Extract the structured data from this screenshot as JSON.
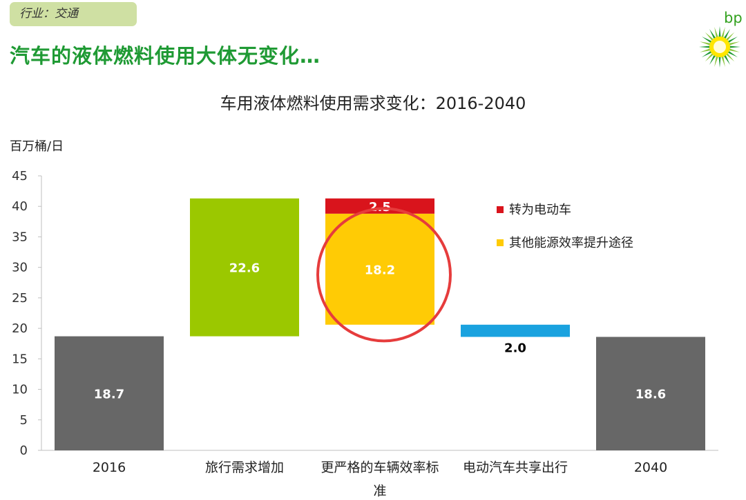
{
  "header": {
    "tag": "行业：交通",
    "headline": "汽车的液体燃料使用大体无变化…",
    "logo_text": "bp"
  },
  "chart_data": {
    "type": "waterfall",
    "title": "车用液体燃料使用需求变化：2016-2040",
    "ylabel": "百万桶/日",
    "ylim": [
      0,
      45
    ],
    "yticks": [
      0,
      5,
      10,
      15,
      20,
      25,
      30,
      35,
      40,
      45
    ],
    "categories": [
      "2016",
      "旅行需求增加",
      "更严格的车辆效率标准",
      "电动汽车共享出行",
      "2040"
    ],
    "category_label_lines": [
      [
        "2016"
      ],
      [
        "旅行需求增加"
      ],
      [
        "更严格的车辆效率标",
        "准"
      ],
      [
        "电动汽车共享出行"
      ],
      [
        "2040"
      ]
    ],
    "bars": [
      {
        "category": "2016",
        "segments": [
          {
            "bottom": 0,
            "top": 18.7,
            "color": "#676767",
            "label": "18.7",
            "label_color": "#ffffff"
          }
        ]
      },
      {
        "category": "旅行需求增加",
        "segments": [
          {
            "bottom": 18.7,
            "top": 41.3,
            "color": "#9bc800",
            "label": "22.6",
            "label_color": "#ffffff"
          }
        ]
      },
      {
        "category": "更严格的车辆效率标准",
        "segments": [
          {
            "bottom": 20.6,
            "top": 38.8,
            "color": "#ffcb05",
            "label": "18.2",
            "label_color": "#ffffff"
          },
          {
            "bottom": 38.8,
            "top": 41.3,
            "color": "#d9141c",
            "label": "2.5",
            "label_color": "#ffffff"
          }
        ]
      },
      {
        "category": "电动汽车共享出行",
        "segments": [
          {
            "bottom": 18.6,
            "top": 20.6,
            "color": "#1aa2df",
            "label": "2.0",
            "label_color": "#000000",
            "label_below": true
          }
        ]
      },
      {
        "category": "2040",
        "segments": [
          {
            "bottom": 0,
            "top": 18.6,
            "color": "#676767",
            "label": "18.6",
            "label_color": "#ffffff"
          }
        ]
      }
    ],
    "legend": [
      {
        "name": "转为电动车",
        "color": "#d9141c"
      },
      {
        "name": "其他能源效率提升途径",
        "color": "#ffcb05"
      }
    ],
    "annotation": {
      "type": "circle",
      "color": "#e63c3c",
      "target": "18.2"
    },
    "grid": false
  }
}
